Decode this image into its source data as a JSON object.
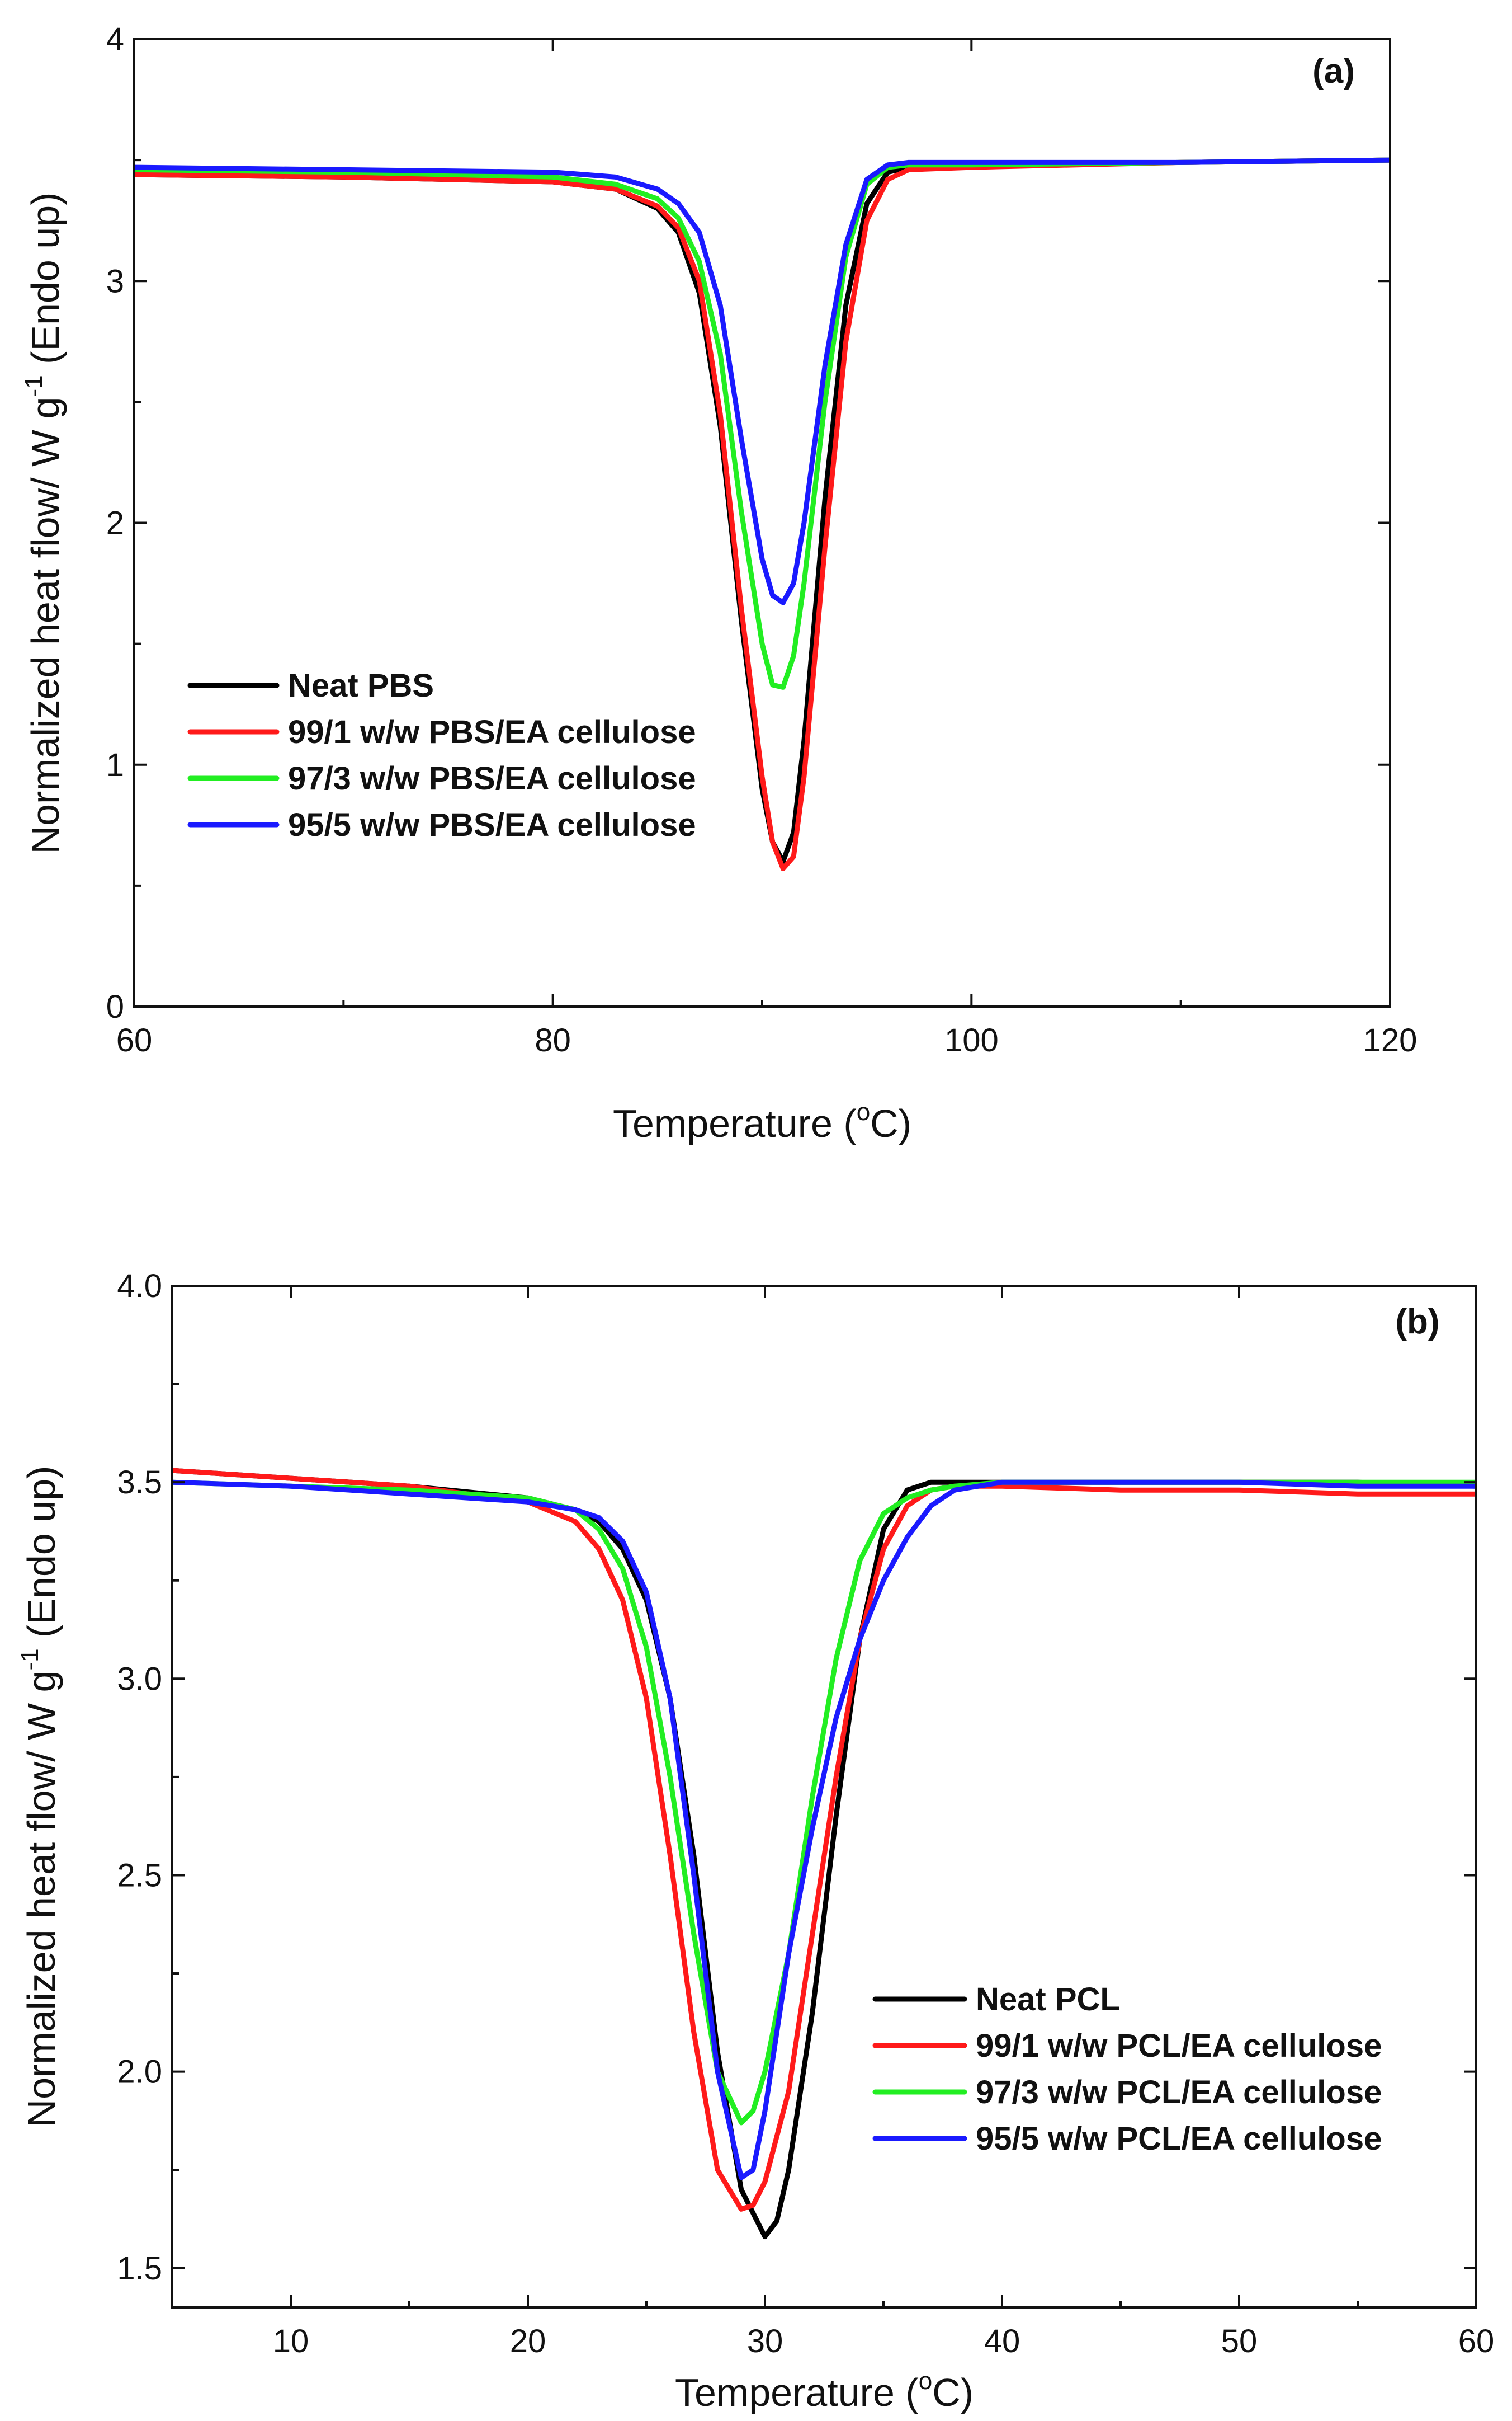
{
  "chart_data": [
    {
      "type": "line",
      "panel_label": "(a)",
      "xlabel": "Temperature (°C)",
      "xlabel_main": "Temperature (",
      "xlabel_sup": "o",
      "xlabel_end": "C)",
      "ylabel": "Normalized heat flow/ W g⁻¹ (Endo up)",
      "ylabel_main": "Normalized heat flow/ W g",
      "ylabel_sup": "-1",
      "ylabel_end": " (Endo up)",
      "xlim": [
        60,
        120
      ],
      "ylim": [
        0,
        4
      ],
      "xticks": [
        60,
        80,
        100,
        120
      ],
      "xtick_labels": [
        "60",
        "80",
        "100",
        "120"
      ],
      "xminor": [
        70,
        90,
        110
      ],
      "yticks": [
        0,
        1,
        2,
        3,
        4
      ],
      "ytick_labels": [
        "0",
        "1",
        "2",
        "3",
        "4"
      ],
      "yminor": [
        0.5,
        1.5,
        2.5,
        3.5
      ],
      "legend_position": "bottom-left",
      "series": [
        {
          "name": "Neat PBS",
          "color": "#000000",
          "x": [
            60,
            70,
            80,
            83,
            85,
            86,
            87,
            88,
            89,
            90,
            90.5,
            91,
            91.5,
            92,
            93,
            94,
            95,
            96,
            97,
            100,
            110,
            120
          ],
          "y": [
            3.44,
            3.43,
            3.41,
            3.38,
            3.3,
            3.2,
            2.95,
            2.4,
            1.6,
            0.9,
            0.68,
            0.6,
            0.72,
            1.1,
            2.1,
            2.9,
            3.32,
            3.45,
            3.47,
            3.48,
            3.49,
            3.5
          ]
        },
        {
          "name": "99/1 w/w PBS/EA cellulose",
          "color": "#ff1a1a",
          "x": [
            60,
            70,
            80,
            83,
            85,
            86,
            87,
            88,
            89,
            90,
            90.5,
            91,
            91.5,
            92,
            93,
            94,
            95,
            96,
            97,
            100,
            110,
            120
          ],
          "y": [
            3.44,
            3.43,
            3.41,
            3.38,
            3.31,
            3.22,
            3.0,
            2.45,
            1.65,
            0.95,
            0.68,
            0.57,
            0.62,
            0.95,
            1.9,
            2.75,
            3.25,
            3.42,
            3.46,
            3.47,
            3.49,
            3.5
          ]
        },
        {
          "name": "97/3 w/w PBS/EA cellulose",
          "color": "#22ee22",
          "x": [
            60,
            70,
            80,
            83,
            85,
            86,
            87,
            88,
            89,
            90,
            90.5,
            91,
            91.5,
            92,
            93,
            94,
            95,
            96,
            97,
            100,
            110,
            120
          ],
          "y": [
            3.46,
            3.45,
            3.43,
            3.4,
            3.34,
            3.26,
            3.08,
            2.7,
            2.05,
            1.5,
            1.33,
            1.32,
            1.45,
            1.75,
            2.5,
            3.1,
            3.4,
            3.47,
            3.48,
            3.48,
            3.49,
            3.5
          ]
        },
        {
          "name": "95/5 w/w PBS/EA cellulose",
          "color": "#1a1aff",
          "x": [
            60,
            70,
            80,
            83,
            85,
            86,
            87,
            88,
            89,
            90,
            90.5,
            91,
            91.5,
            92,
            93,
            94,
            95,
            96,
            97,
            100,
            110,
            120
          ],
          "y": [
            3.47,
            3.46,
            3.45,
            3.43,
            3.38,
            3.32,
            3.2,
            2.9,
            2.35,
            1.85,
            1.7,
            1.67,
            1.75,
            2.0,
            2.65,
            3.15,
            3.42,
            3.48,
            3.49,
            3.49,
            3.49,
            3.5
          ]
        }
      ]
    },
    {
      "type": "line",
      "panel_label": "(b)",
      "xlabel": "Temperature (°C)",
      "xlabel_main": "Temperature (",
      "xlabel_sup": "o",
      "xlabel_end": "C)",
      "ylabel": "Normalized heat flow/ W g⁻¹ (Endo up)",
      "ylabel_main": "Normalized heat flow/ W g",
      "ylabel_sup": "-1",
      "ylabel_end": " (Endo up)",
      "xlim": [
        5,
        60
      ],
      "ylim": [
        1.4,
        4.0
      ],
      "xticks": [
        10,
        20,
        30,
        40,
        50,
        60
      ],
      "xtick_labels": [
        "10",
        "20",
        "30",
        "40",
        "50",
        "60"
      ],
      "xminor": [
        5,
        15,
        25,
        35,
        45,
        55
      ],
      "yticks": [
        1.5,
        2.0,
        2.5,
        3.0,
        3.5,
        4.0
      ],
      "ytick_labels": [
        "1.5",
        "2.0",
        "2.5",
        "3.0",
        "3.5",
        "4.0"
      ],
      "yminor": [
        1.75,
        2.25,
        2.75,
        3.25,
        3.75
      ],
      "legend_position": "bottom-right",
      "series": [
        {
          "name": "Neat PCL",
          "color": "#000000",
          "x": [
            5,
            10,
            15,
            20,
            22,
            23,
            24,
            25,
            26,
            27,
            28,
            29,
            30,
            30.5,
            31,
            32,
            33,
            34,
            35,
            36,
            37,
            38,
            40,
            45,
            50,
            55,
            60
          ],
          "y": [
            3.53,
            3.51,
            3.49,
            3.46,
            3.43,
            3.4,
            3.33,
            3.2,
            2.95,
            2.55,
            2.05,
            1.7,
            1.58,
            1.62,
            1.75,
            2.15,
            2.65,
            3.1,
            3.38,
            3.48,
            3.5,
            3.5,
            3.5,
            3.5,
            3.5,
            3.5,
            3.49
          ]
        },
        {
          "name": "99/1 w/w PCL/EA cellulose",
          "color": "#ff1a1a",
          "x": [
            5,
            10,
            15,
            20,
            22,
            23,
            24,
            25,
            26,
            27,
            28,
            29,
            29.5,
            30,
            31,
            32,
            33,
            34,
            35,
            36,
            37,
            38,
            40,
            45,
            50,
            55,
            60
          ],
          "y": [
            3.53,
            3.51,
            3.49,
            3.45,
            3.4,
            3.33,
            3.2,
            2.95,
            2.55,
            2.1,
            1.75,
            1.65,
            1.66,
            1.72,
            1.95,
            2.35,
            2.75,
            3.1,
            3.33,
            3.44,
            3.48,
            3.49,
            3.49,
            3.48,
            3.48,
            3.47,
            3.47
          ]
        },
        {
          "name": "97/3 w/w PCL/EA cellulose",
          "color": "#22ee22",
          "x": [
            5,
            10,
            15,
            20,
            22,
            23,
            24,
            25,
            26,
            27,
            28,
            29,
            29.5,
            30,
            31,
            32,
            33,
            34,
            35,
            36,
            37,
            38,
            40,
            45,
            50,
            55,
            60
          ],
          "y": [
            3.5,
            3.49,
            3.48,
            3.46,
            3.43,
            3.38,
            3.28,
            3.08,
            2.75,
            2.35,
            2.0,
            1.87,
            1.9,
            2.0,
            2.3,
            2.7,
            3.05,
            3.3,
            3.42,
            3.46,
            3.48,
            3.49,
            3.5,
            3.5,
            3.5,
            3.5,
            3.5
          ]
        },
        {
          "name": "95/5 w/w PCL/EA cellulose",
          "color": "#1a1aff",
          "x": [
            5,
            10,
            15,
            20,
            22,
            23,
            24,
            25,
            26,
            27,
            28,
            29,
            29.5,
            30,
            31,
            32,
            33,
            34,
            35,
            36,
            37,
            38,
            40,
            45,
            50,
            55,
            60
          ],
          "y": [
            3.5,
            3.49,
            3.47,
            3.45,
            3.43,
            3.41,
            3.35,
            3.22,
            2.95,
            2.5,
            2.0,
            1.73,
            1.75,
            1.9,
            2.3,
            2.62,
            2.9,
            3.1,
            3.25,
            3.36,
            3.44,
            3.48,
            3.5,
            3.5,
            3.5,
            3.49,
            3.49
          ]
        }
      ]
    }
  ]
}
